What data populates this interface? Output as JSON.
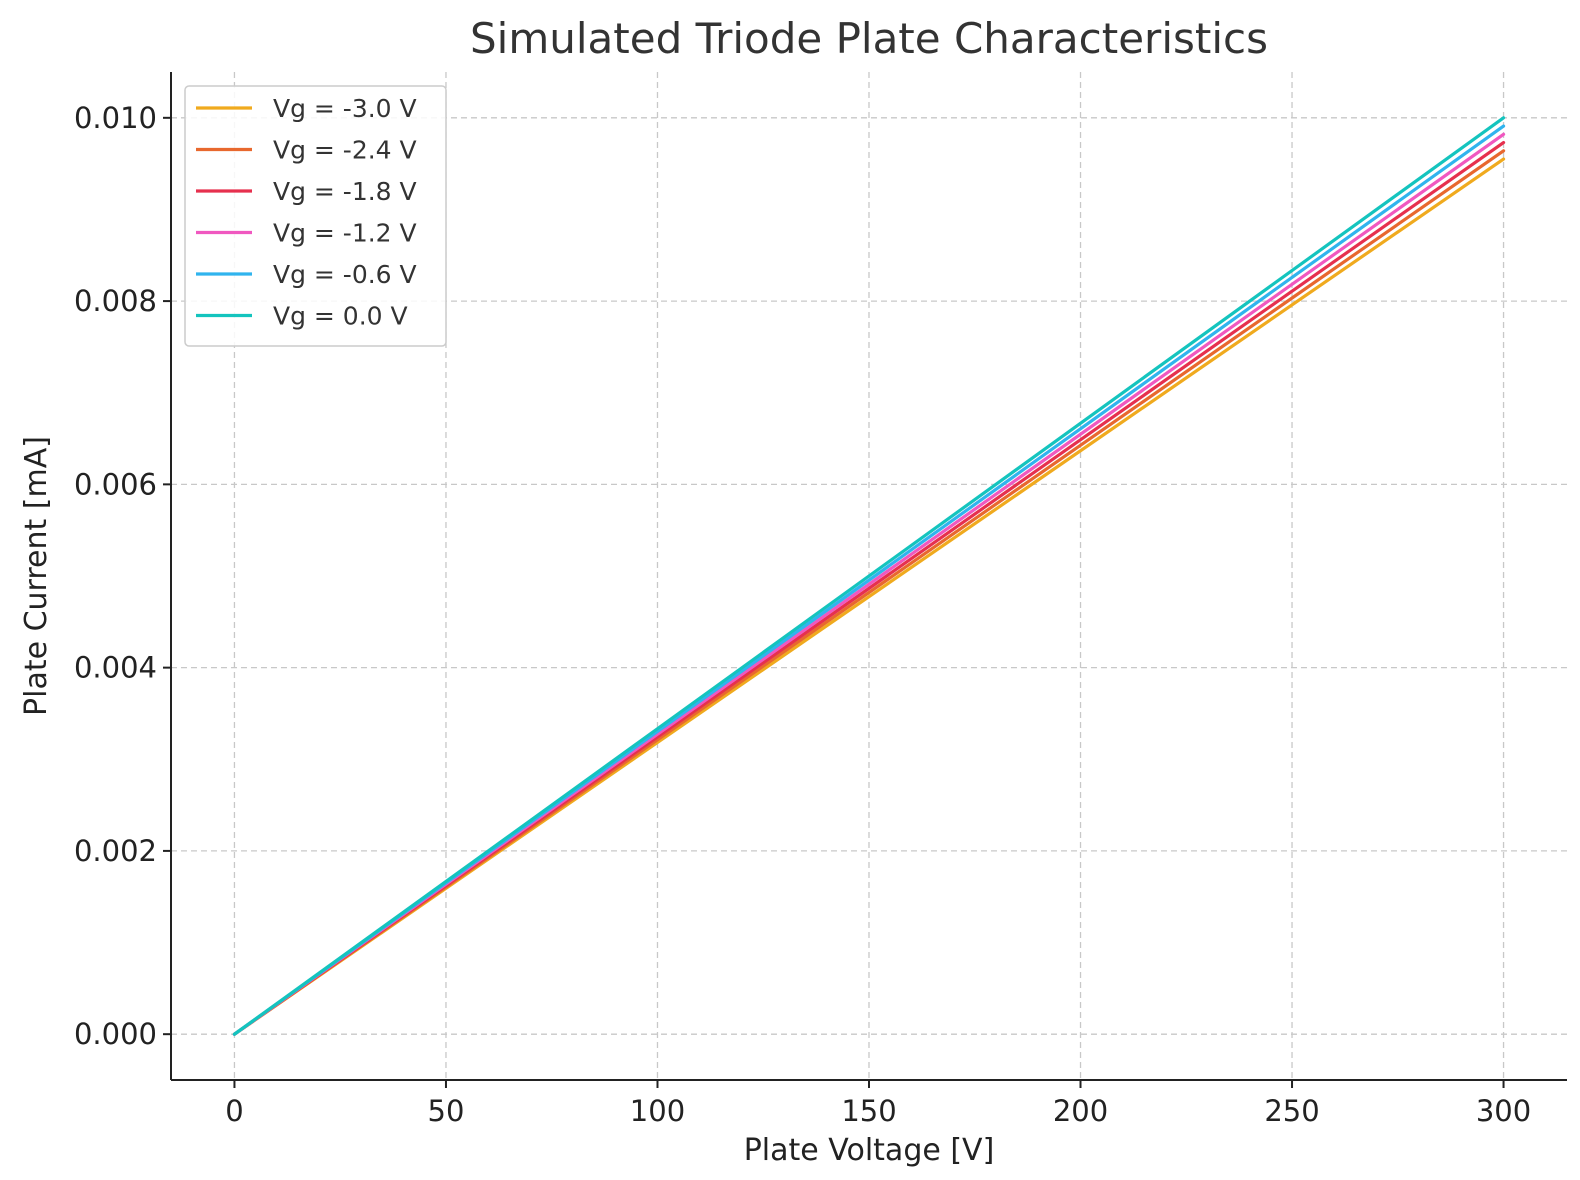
{
  "chart_data": {
    "type": "line",
    "title": "Simulated Triode Plate Characteristics",
    "xlabel": "Plate Voltage [V]",
    "ylabel": "Plate Current [mA]",
    "xlim": [
      -15,
      315
    ],
    "ylim": [
      -0.0005,
      0.0105
    ],
    "xticks": [
      0,
      50,
      100,
      150,
      200,
      250,
      300
    ],
    "xtick_labels": [
      "0",
      "50",
      "100",
      "150",
      "200",
      "250",
      "300"
    ],
    "yticks": [
      0.0,
      0.002,
      0.004,
      0.006,
      0.008,
      0.01
    ],
    "ytick_labels": [
      "0.000",
      "0.002",
      "0.004",
      "0.006",
      "0.008",
      "0.010"
    ],
    "grid": true,
    "legend_position": "top-left",
    "x": [
      0,
      300
    ],
    "series": [
      {
        "name": "Vg = -3.0 V",
        "color": "#F0AA1E",
        "values": [
          0.0,
          0.00955
        ]
      },
      {
        "name": "Vg = -2.4 V",
        "color": "#E8682E",
        "values": [
          0.0,
          0.00964
        ]
      },
      {
        "name": "Vg = -1.8 V",
        "color": "#E6304E",
        "values": [
          0.0,
          0.00973
        ]
      },
      {
        "name": "Vg = -1.2 V",
        "color": "#F058C0",
        "values": [
          0.0,
          0.00982
        ]
      },
      {
        "name": "Vg = -0.6 V",
        "color": "#30B4EE",
        "values": [
          0.0,
          0.00991
        ]
      },
      {
        "name": "Vg = 0.0 V",
        "color": "#14C4BE",
        "values": [
          0.0,
          0.01
        ]
      }
    ]
  }
}
